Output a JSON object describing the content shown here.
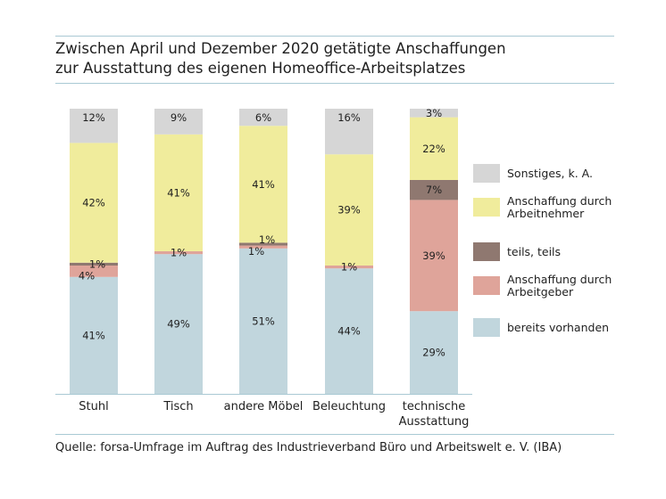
{
  "title_lines": [
    "Zwischen April und Dezember 2020 getätigte Anschaffungen",
    "zur Ausstattung des eigenen Homeoffice-Arbeitsplatzes"
  ],
  "source": "Quelle: forsa-Umfrage im Auftrag des Industrieverband Büro und Arbeitswelt e. V. (IBA)",
  "chart_data": {
    "type": "bar",
    "stacked": true,
    "categories": [
      [
        "Stuhl"
      ],
      [
        "Tisch"
      ],
      [
        "andere Möbel"
      ],
      [
        "Beleuchtung"
      ],
      [
        "technische",
        "Ausstattung"
      ]
    ],
    "series": [
      {
        "name": "bereits vorhanden",
        "color": "#c1d6dd",
        "values": [
          41,
          49,
          51,
          44,
          29
        ],
        "labels": [
          "41%",
          "49%",
          "51%",
          "44%",
          "29%"
        ]
      },
      {
        "name": "Anschaffung durch Arbeitgeber",
        "color": "#dfa49a",
        "values": [
          4,
          1,
          1,
          1,
          39
        ],
        "labels": [
          "4%",
          "1%",
          "1%",
          "1%",
          "39%"
        ]
      },
      {
        "name": "teils, teils",
        "color": "#8f7870",
        "values": [
          1,
          0,
          1,
          0,
          7
        ],
        "labels": [
          "1%",
          "",
          "1%",
          "",
          "7%"
        ]
      },
      {
        "name": "Anschaffung durch Arbeitnehmer",
        "color": "#f0ec9c",
        "values": [
          42,
          41,
          41,
          39,
          22
        ],
        "labels": [
          "42%",
          "41%",
          "41%",
          "39%",
          "22%"
        ]
      },
      {
        "name": "Sonstiges, k. A.",
        "color": "#d6d6d6",
        "values": [
          12,
          9,
          6,
          16,
          3
        ],
        "labels": [
          "12%",
          "9%",
          "6%",
          "16%",
          "3%"
        ]
      }
    ],
    "legend": {
      "position": "right",
      "items": [
        {
          "label": [
            "Sonstiges, k. A."
          ],
          "color": "#d6d6d6"
        },
        {
          "label": [
            "Anschaffung durch",
            "Arbeitnehmer"
          ],
          "color": "#f0ec9c"
        },
        {
          "label": [
            "teils, teils"
          ],
          "color": "#8f7870"
        },
        {
          "label": [
            "Anschaffung durch",
            "Arbeitgeber"
          ],
          "color": "#dfa49a"
        },
        {
          "label": [
            "bereits vorhanden"
          ],
          "color": "#c1d6dd"
        }
      ]
    },
    "ylim": [
      0,
      100
    ],
    "grid": false
  }
}
